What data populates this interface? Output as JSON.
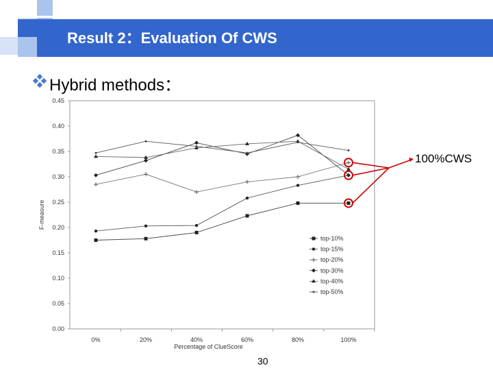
{
  "slide": {
    "title": "Result 2：Evaluation Of CWS",
    "bullet_text": "Hybrid methods：",
    "page_number": "30",
    "accent_color": "#3366cc",
    "bullet_icon": "diamond-bullet-icon"
  },
  "annotation": {
    "label": "100%CWS",
    "color": "#cc0000"
  },
  "chart_data": {
    "type": "line",
    "title": "",
    "xlabel": "Percentage of ClueScore",
    "ylabel": "F-measure",
    "categories": [
      "0%",
      "20%",
      "40%",
      "60%",
      "80%",
      "100%"
    ],
    "yticks": [
      "0.00",
      "0.05",
      "0.10",
      "0.15",
      "0.20",
      "0.25",
      "0.30",
      "0.35",
      "0.40",
      "0.45"
    ],
    "ylim": [
      0,
      0.45
    ],
    "grid": false,
    "legend_position": "bottom-right",
    "series": [
      {
        "name": "top-10%",
        "marker": "square",
        "values": [
          0.175,
          0.178,
          0.19,
          0.223,
          0.248,
          0.248
        ]
      },
      {
        "name": "top-15%",
        "marker": "dot",
        "values": [
          0.193,
          0.203,
          0.204,
          0.258,
          0.283,
          0.303
        ]
      },
      {
        "name": "top-20%",
        "marker": "plus",
        "values": [
          0.285,
          0.305,
          0.27,
          0.29,
          0.3,
          0.328
        ]
      },
      {
        "name": "top-30%",
        "marker": "diamond",
        "values": [
          0.303,
          0.332,
          0.367,
          0.345,
          0.382,
          0.303
        ]
      },
      {
        "name": "top-40%",
        "marker": "triangle",
        "values": [
          0.34,
          0.338,
          0.357,
          0.365,
          0.37,
          0.315
        ]
      },
      {
        "name": "top-50%",
        "marker": "small",
        "values": [
          0.347,
          0.37,
          0.36,
          0.347,
          0.368,
          0.352
        ]
      }
    ]
  }
}
